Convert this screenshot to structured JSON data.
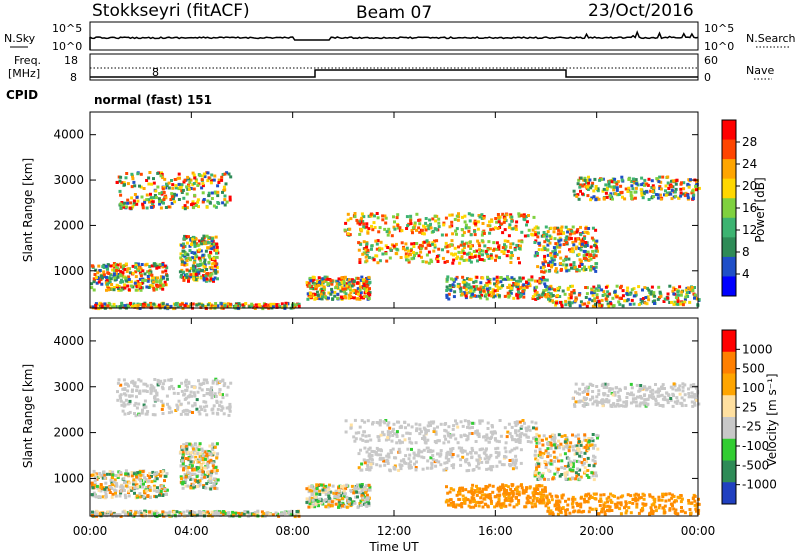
{
  "header": {
    "title": "Stokkseyri (fitACF)",
    "beam": "Beam 07",
    "date": "23/Oct/2016"
  },
  "noise_panel": {
    "left_label": "N.Sky",
    "right_label": "N.Search",
    "left_ticks": [
      "10^5",
      "10^0"
    ],
    "right_ticks": [
      "10^5",
      "10^0"
    ]
  },
  "freq_panel": {
    "left_label_line1": "Freq.",
    "left_label_line2": "[MHz]",
    "left_ticks": [
      "18",
      "8"
    ],
    "right_label": "Nave",
    "right_ticks": [
      "60",
      "0"
    ],
    "cpid_label": "CPID",
    "cpid_value": "normal (fast) 151"
  },
  "chart_data": [
    {
      "type": "heatmap",
      "name": "power",
      "ylabel": "Slant Range [km]",
      "y_ticks": [
        "4000",
        "3000",
        "2000",
        "1000"
      ],
      "y_values": [
        4000,
        3000,
        2000,
        1000
      ],
      "ylim": [
        180,
        4500
      ],
      "xlim_hours": [
        0,
        24
      ],
      "colorbar": {
        "label": "Power [dB]",
        "tick_labels": [
          "28",
          "24",
          "20",
          "16",
          "12",
          "8",
          "4"
        ],
        "range": [
          0,
          30
        ],
        "colors": [
          "#0000ff",
          "#1f4fc8",
          "#2e8b57",
          "#3cb371",
          "#7fd13f",
          "#ffd700",
          "#ffa500",
          "#ff4500",
          "#ff0000"
        ]
      }
    },
    {
      "type": "heatmap",
      "name": "velocity",
      "ylabel": "Slant Range [km]",
      "y_ticks": [
        "4000",
        "3000",
        "2000",
        "1000"
      ],
      "y_values": [
        4000,
        3000,
        2000,
        1000
      ],
      "ylim": [
        180,
        4500
      ],
      "xlim_hours": [
        0,
        24
      ],
      "colorbar": {
        "label": "Velocity [m s⁻¹]",
        "tick_labels": [
          "1000",
          "500",
          "100",
          "25",
          "-25",
          "-100",
          "-500",
          "-1000"
        ],
        "colors": [
          "#2040c0",
          "#2e8b57",
          "#32cd32",
          "#c8c8c8",
          "#ffe0a0",
          "#ffa500",
          "#ff7f00",
          "#ff0000"
        ]
      }
    }
  ],
  "xaxis": {
    "label": "Time UT",
    "ticks": [
      "00:00",
      "04:00",
      "08:00",
      "12:00",
      "16:00",
      "20:00",
      "00:00"
    ],
    "tick_hours": [
      0,
      4,
      8,
      12,
      16,
      20,
      24
    ]
  }
}
